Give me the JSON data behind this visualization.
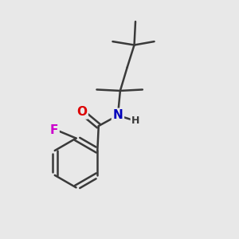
{
  "background_color": "#e8e8e8",
  "bond_color": "#3a3a3a",
  "bond_width": 1.8,
  "atom_colors": {
    "O": "#dd0000",
    "N": "#0000bb",
    "F": "#cc00cc",
    "C": "#3a3a3a",
    "H": "#3a3a3a"
  },
  "font_size_atoms": 11,
  "font_size_H": 9
}
